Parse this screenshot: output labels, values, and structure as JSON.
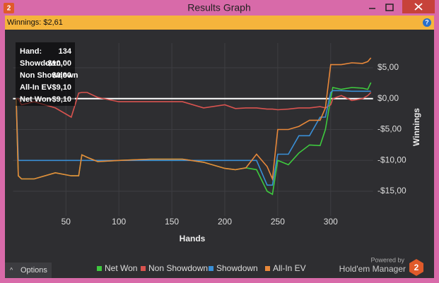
{
  "window": {
    "title": "Results Graph",
    "summary": "Winnings: $2,61",
    "options": "Options",
    "powered_by": "Powered by",
    "brand": "Hold'em Manager"
  },
  "tooltip": {
    "rows": [
      {
        "label": "Hand:",
        "value": "134"
      },
      {
        "label": "Showdown",
        "value": "-$10,00"
      },
      {
        "label": "Non Showdown",
        "value": "$0,90"
      },
      {
        "label": "All-In EV",
        "value": "-$9,10"
      },
      {
        "label": "Net Won",
        "value": "-$9,10"
      }
    ]
  },
  "chart_data": {
    "type": "line",
    "x_label": "Hands",
    "y_label": "Winnings",
    "x": [
      3,
      5,
      8,
      20,
      40,
      55,
      62,
      65,
      70,
      80,
      100,
      130,
      160,
      180,
      200,
      210,
      220,
      230,
      240,
      245,
      250,
      260,
      270,
      280,
      290,
      295,
      300,
      302,
      310,
      320,
      330,
      335,
      338
    ],
    "series": [
      {
        "name": "Net Won",
        "color": "#3ec93e",
        "values": [
          0,
          -12.5,
          -13,
          -13,
          -12,
          -12.5,
          -12.5,
          -9.1,
          -9.5,
          -10.2,
          -10,
          -9.8,
          -9.8,
          -10.3,
          -11.3,
          -11.5,
          -11.2,
          -11.5,
          -15,
          -15.5,
          -10,
          -10.7,
          -8.8,
          -7.5,
          -7.6,
          -5,
          0,
          1.8,
          1.5,
          1.8,
          1.7,
          1.5,
          2.6
        ]
      },
      {
        "name": "Non Showdown",
        "color": "#d9534f",
        "values": [
          0,
          0,
          -1,
          -0.5,
          -1.5,
          -3,
          0.9,
          1,
          1,
          0.2,
          -0.5,
          -0.5,
          -0.5,
          -1.5,
          -1,
          -1.6,
          -1.5,
          -1.5,
          -1.7,
          -1.7,
          -1.8,
          -1.7,
          -1.5,
          -1.5,
          -1.3,
          -1.5,
          -1,
          0,
          0.5,
          -0.3,
          0,
          0.5,
          1
        ]
      },
      {
        "name": "Showdown",
        "color": "#3a8fd6",
        "values": [
          0,
          -10,
          -10,
          -10,
          -10,
          -10,
          -10,
          -10,
          -10,
          -10,
          -10,
          -10,
          -10,
          -10,
          -10,
          -10,
          -10,
          -10,
          -14,
          -14,
          -9,
          -9,
          -6,
          -6,
          -3,
          -3,
          1,
          1.3,
          1.3,
          1.2,
          1.2,
          1.2,
          1.2
        ]
      },
      {
        "name": "All-In EV",
        "color": "#e8883a",
        "values": [
          0,
          -12.5,
          -13,
          -13,
          -12,
          -12.5,
          -12.5,
          -9.1,
          -9.5,
          -10.2,
          -10,
          -9.8,
          -9.8,
          -10.3,
          -11.3,
          -11.5,
          -11.2,
          -9,
          -11,
          -13,
          -5,
          -5,
          -4.5,
          -3.5,
          -3.5,
          -1.5,
          5.5,
          5.5,
          5.5,
          5.8,
          5.7,
          6,
          6.6
        ]
      }
    ],
    "xlim": [
      0,
      340
    ],
    "ylim": [
      -19,
      9
    ],
    "xticks": [
      50,
      100,
      150,
      200,
      250,
      300
    ],
    "yticks": [
      {
        "value": -15,
        "label": "-$15,00"
      },
      {
        "value": -10,
        "label": "-$10,00"
      },
      {
        "value": -5,
        "label": "-$5,00"
      },
      {
        "value": 0,
        "label": "$0,00"
      },
      {
        "value": 5,
        "label": "$5,00"
      }
    ],
    "grid": true
  }
}
